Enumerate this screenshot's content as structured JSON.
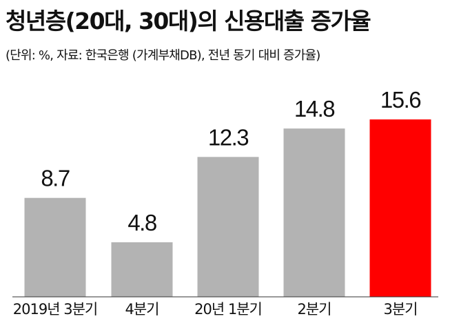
{
  "title": "청년층(20대, 30대)의 신용대출 증가율",
  "subtitle": "(단위: %, 자료: 한국은행 (가계부채DB), 전년 동기 대비 증가율)",
  "colors": {
    "bar_default": "#b3b3b3",
    "bar_highlight": "#ff0000",
    "text": "#111111",
    "baseline": "#333333"
  },
  "chart_data": {
    "type": "bar",
    "title": "청년층(20대, 30대)의 신용대출 증가율",
    "subtitle": "(단위: %, 자료: 한국은행 (가계부채DB), 전년 동기 대비 증가율)",
    "categories": [
      "2019년 3분기",
      "4분기",
      "20년 1분기",
      "2분기",
      "3분기"
    ],
    "values": [
      8.7,
      4.8,
      12.3,
      14.8,
      15.6
    ],
    "value_labels": [
      "8.7",
      "4.8",
      "12.3",
      "14.8",
      "15.6"
    ],
    "highlight_index": 4,
    "xlabel": "",
    "ylabel": "",
    "ylim": [
      0,
      15.6
    ],
    "grid": false,
    "legend": "none"
  }
}
